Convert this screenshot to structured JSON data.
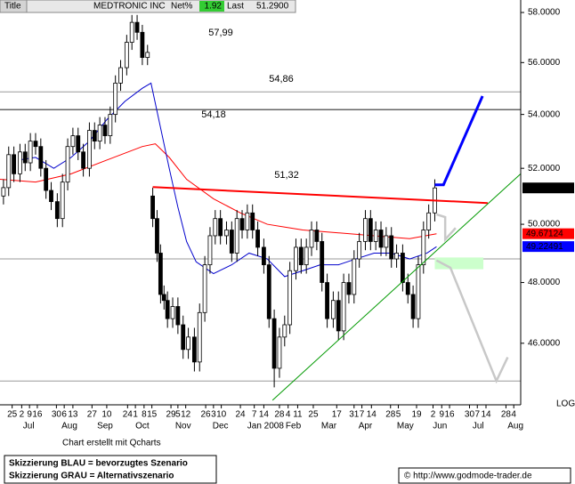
{
  "header": {
    "title": "Title",
    "symbol": "MEDTRONIC INC",
    "net_label": "Net%",
    "net": 1.92,
    "last_label": "Last",
    "last": {
      "value": 51.29,
      "label": "51.2900"
    }
  },
  "chart_data": {
    "type": "candlestick",
    "log": true,
    "ylim": [
      44.14,
      58.51
    ],
    "xlim": [
      0,
      60
    ],
    "yticks": [
      {
        "value": 58,
        "label": "58.0000"
      },
      {
        "value": 56,
        "label": "56.0000"
      },
      {
        "value": 54,
        "label": "54.0000"
      },
      {
        "value": 52,
        "label": "52.0000"
      },
      {
        "value": 50,
        "label": "50.0000"
      },
      {
        "value": 48,
        "label": "48.0000"
      },
      {
        "value": 46,
        "label": "46.0000"
      }
    ],
    "xticks": [
      {
        "value": 1.4,
        "label": "25"
      },
      {
        "value": 2.5,
        "label": "2"
      },
      {
        "value": 3.4,
        "label": "9"
      },
      {
        "value": 4.3,
        "label": "16"
      },
      {
        "value": 6.5,
        "label": "30"
      },
      {
        "value": 7.4,
        "label": "6"
      },
      {
        "value": 8.4,
        "label": "13"
      },
      {
        "value": 10.6,
        "label": "27"
      },
      {
        "value": 12.3,
        "label": "10"
      },
      {
        "value": 14.7,
        "label": "24"
      },
      {
        "value": 15.6,
        "label": "1"
      },
      {
        "value": 16.6,
        "label": "8"
      },
      {
        "value": 17.5,
        "label": "15"
      },
      {
        "value": 19.7,
        "label": "29"
      },
      {
        "value": 20.5,
        "label": "5"
      },
      {
        "value": 21.4,
        "label": "12"
      },
      {
        "value": 23.7,
        "label": "26"
      },
      {
        "value": 24.6,
        "label": "3"
      },
      {
        "value": 25.5,
        "label": "10"
      },
      {
        "value": 27.7,
        "label": "24"
      },
      {
        "value": 29.3,
        "label": "7"
      },
      {
        "value": 30.4,
        "label": "14"
      },
      {
        "value": 32.2,
        "label": "28"
      },
      {
        "value": 33.2,
        "label": "4"
      },
      {
        "value": 34.3,
        "label": "11"
      },
      {
        "value": 36.1,
        "label": "25"
      },
      {
        "value": 38.8,
        "label": "17"
      },
      {
        "value": 40.8,
        "label": "31"
      },
      {
        "value": 41.7,
        "label": "7"
      },
      {
        "value": 42.8,
        "label": "14"
      },
      {
        "value": 45.0,
        "label": "28"
      },
      {
        "value": 45.9,
        "label": "5"
      },
      {
        "value": 48.0,
        "label": "19"
      },
      {
        "value": 49.9,
        "label": "2"
      },
      {
        "value": 50.9,
        "label": "9"
      },
      {
        "value": 51.8,
        "label": "16"
      },
      {
        "value": 54.1,
        "label": "30"
      },
      {
        "value": 55.0,
        "label": "7"
      },
      {
        "value": 56.0,
        "label": "14"
      },
      {
        "value": 58.3,
        "label": "28"
      },
      {
        "value": 59.2,
        "label": "4"
      }
    ],
    "month_ticks": [
      {
        "value": 3.3,
        "label": "Jul"
      },
      {
        "value": 8.0,
        "label": "Aug"
      },
      {
        "value": 12.1,
        "label": "Sep"
      },
      {
        "value": 16.4,
        "label": "Oct"
      },
      {
        "value": 21.1,
        "label": "Nov"
      },
      {
        "value": 25.4,
        "label": "Dec"
      },
      {
        "value": 30.6,
        "label": "Jan 2008"
      },
      {
        "value": 33.8,
        "label": "Feb"
      },
      {
        "value": 37.9,
        "label": "Mar"
      },
      {
        "value": 42.1,
        "label": "Apr"
      },
      {
        "value": 46.7,
        "label": "May"
      },
      {
        "value": 50.7,
        "label": "Jun"
      },
      {
        "value": 55.1,
        "label": "Jul"
      },
      {
        "value": 59.4,
        "label": "Aug"
      }
    ],
    "scale_label": "LOG",
    "candles": {
      "x": [
        0.4,
        1.0,
        1.6,
        2.3,
        2.9,
        3.5,
        4.1,
        4.7,
        5.3,
        5.9,
        6.6,
        7.2,
        7.8,
        8.4,
        9.0,
        9.6,
        10.3,
        10.9,
        11.5,
        12.1,
        12.7,
        13.3,
        13.9,
        14.6,
        15.2,
        15.8,
        16.4,
        17.0,
        17.6,
        18.1,
        18.5,
        18.9,
        19.3,
        19.9,
        20.5,
        21.1,
        21.7,
        22.4,
        23.0,
        23.6,
        24.2,
        24.8,
        25.4,
        26.1,
        26.7,
        27.3,
        27.9,
        28.5,
        29.1,
        29.7,
        30.4,
        31.0,
        31.6,
        32.2,
        32.8,
        33.4,
        34.1,
        34.7,
        35.3,
        35.9,
        36.5,
        37.1,
        37.7,
        38.4,
        39.0,
        39.6,
        40.2,
        40.8,
        41.4,
        42.1,
        42.7,
        43.3,
        43.9,
        44.5,
        45.1,
        45.7,
        46.4,
        47.0,
        47.6,
        48.2,
        48.8,
        49.4,
        50.1
      ],
      "ohlc": [
        [
          51.0,
          51.6,
          50.7,
          51.3
        ],
        [
          51.3,
          52.8,
          51.0,
          52.5
        ],
        [
          52.5,
          52.8,
          51.5,
          51.8
        ],
        [
          51.8,
          52.9,
          51.5,
          52.6
        ],
        [
          52.6,
          52.9,
          51.9,
          52.2
        ],
        [
          52.2,
          53.3,
          51.9,
          53.0
        ],
        [
          53.0,
          53.3,
          52.5,
          52.8
        ],
        [
          52.8,
          53.1,
          51.7,
          52.0
        ],
        [
          52.0,
          52.3,
          50.9,
          51.2
        ],
        [
          51.2,
          51.5,
          50.5,
          50.8
        ],
        [
          50.8,
          51.1,
          49.9,
          50.2
        ],
        [
          50.2,
          51.8,
          49.9,
          51.5
        ],
        [
          51.5,
          53.1,
          51.2,
          52.8
        ],
        [
          52.8,
          53.5,
          52.5,
          53.2
        ],
        [
          53.2,
          53.5,
          52.3,
          52.6
        ],
        [
          52.6,
          52.9,
          51.7,
          52.0
        ],
        [
          52.0,
          53.7,
          51.7,
          53.4
        ],
        [
          53.4,
          53.7,
          52.7,
          53.0
        ],
        [
          53.0,
          53.9,
          52.7,
          53.6
        ],
        [
          53.6,
          53.9,
          52.9,
          53.2
        ],
        [
          53.2,
          54.3,
          52.9,
          54.0
        ],
        [
          54.0,
          55.5,
          53.7,
          55.2
        ],
        [
          55.2,
          56.1,
          54.9,
          55.8
        ],
        [
          55.8,
          57.1,
          55.5,
          56.8
        ],
        [
          56.8,
          57.9,
          56.5,
          57.6
        ],
        [
          57.6,
          57.9,
          56.9,
          57.2
        ],
        [
          57.2,
          57.5,
          55.9,
          56.2
        ],
        [
          56.2,
          56.7,
          55.9,
          56.4
        ],
        [
          51.0,
          51.3,
          49.9,
          50.2
        ],
        [
          50.2,
          50.5,
          48.7,
          49.0
        ],
        [
          49.0,
          49.3,
          47.3,
          47.6
        ],
        [
          47.6,
          47.9,
          47.1,
          47.4
        ],
        [
          47.4,
          47.7,
          46.5,
          46.8
        ],
        [
          46.8,
          47.5,
          46.5,
          47.2
        ],
        [
          47.2,
          47.5,
          46.3,
          46.6
        ],
        [
          46.6,
          46.9,
          45.5,
          45.8
        ],
        [
          45.8,
          46.5,
          45.5,
          46.2
        ],
        [
          46.2,
          46.5,
          45.1,
          45.4
        ],
        [
          45.4,
          47.3,
          45.1,
          47.0
        ],
        [
          47.0,
          48.9,
          46.7,
          48.6
        ],
        [
          48.6,
          49.9,
          48.3,
          49.6
        ],
        [
          49.6,
          50.5,
          49.3,
          50.2
        ],
        [
          50.2,
          50.5,
          49.3,
          49.6
        ],
        [
          49.6,
          50.1,
          49.3,
          49.8
        ],
        [
          49.8,
          50.1,
          48.7,
          49.0
        ],
        [
          49.0,
          50.5,
          48.7,
          50.2
        ],
        [
          50.2,
          50.5,
          49.5,
          49.8
        ],
        [
          49.8,
          50.7,
          49.5,
          50.4
        ],
        [
          50.4,
          50.7,
          49.5,
          49.8
        ],
        [
          49.8,
          50.1,
          48.9,
          49.2
        ],
        [
          49.2,
          49.5,
          48.3,
          48.6
        ],
        [
          48.6,
          48.9,
          46.5,
          46.8
        ],
        [
          46.8,
          47.1,
          44.6,
          45.2
        ],
        [
          45.2,
          46.5,
          44.9,
          46.2
        ],
        [
          46.2,
          46.9,
          45.9,
          46.6
        ],
        [
          46.6,
          48.7,
          46.3,
          48.4
        ],
        [
          48.4,
          49.5,
          48.1,
          49.2
        ],
        [
          49.2,
          49.5,
          48.3,
          48.6
        ],
        [
          48.6,
          49.5,
          48.3,
          49.2
        ],
        [
          49.2,
          50.1,
          48.9,
          49.8
        ],
        [
          49.8,
          50.1,
          49.1,
          49.4
        ],
        [
          49.4,
          49.7,
          47.7,
          48.0
        ],
        [
          48.0,
          48.3,
          46.5,
          46.8
        ],
        [
          46.8,
          47.7,
          46.5,
          47.4
        ],
        [
          47.4,
          47.7,
          46.1,
          46.4
        ],
        [
          46.4,
          48.3,
          46.1,
          48.0
        ],
        [
          48.0,
          48.3,
          47.3,
          47.6
        ],
        [
          47.6,
          49.1,
          47.3,
          48.8
        ],
        [
          48.8,
          49.7,
          48.5,
          49.4
        ],
        [
          49.4,
          50.5,
          49.1,
          50.2
        ],
        [
          50.2,
          50.5,
          49.1,
          49.4
        ],
        [
          49.4,
          50.1,
          49.1,
          49.8
        ],
        [
          49.8,
          50.1,
          48.9,
          49.2
        ],
        [
          49.2,
          49.9,
          48.9,
          49.6
        ],
        [
          49.6,
          49.9,
          48.5,
          48.8
        ],
        [
          48.8,
          49.3,
          48.5,
          49.0
        ],
        [
          49.0,
          49.3,
          47.7,
          48.0
        ],
        [
          48.0,
          48.3,
          47.3,
          47.6
        ],
        [
          47.6,
          47.9,
          46.5,
          46.8
        ],
        [
          46.8,
          48.9,
          46.5,
          48.6
        ],
        [
          48.6,
          50.1,
          48.3,
          49.8
        ],
        [
          49.8,
          50.7,
          49.5,
          50.4
        ],
        [
          50.4,
          51.6,
          50.1,
          51.29
        ]
      ],
      "last": {
        "value": 51.29,
        "label": "51.2900"
      },
      "color": "#000000"
    },
    "series": [
      {
        "color": "#ff0000",
        "last": 49.67124,
        "x": [
          0,
          4.1,
          8.2,
          12.3,
          16.4,
          17.9,
          19.5,
          21.5,
          24.6,
          27.7,
          30.8,
          34.9,
          39.0,
          43.1,
          47.2,
          50.3
        ],
        "values": [
          51.6,
          51.5,
          51.8,
          52.3,
          52.8,
          52.9,
          52.4,
          51.6,
          50.9,
          50.4,
          50.0,
          49.8,
          49.7,
          49.6,
          49.5,
          49.67
        ]
      },
      {
        "color": "#0000cc",
        "last": 49.22491,
        "x": [
          2.1,
          4.1,
          6.2,
          8.2,
          10.3,
          12.3,
          14.4,
          16.4,
          17.4,
          18.5,
          19.5,
          20.5,
          21.5,
          22.6,
          24.6,
          26.7,
          28.7,
          30.8,
          32.8,
          34.9,
          36.9,
          39.0,
          41.0,
          43.1,
          45.1,
          47.2,
          49.2,
          50.3
        ],
        "values": [
          52.3,
          52.4,
          52.0,
          52.4,
          53.0,
          53.8,
          54.5,
          55.0,
          55.2,
          53.5,
          52.0,
          50.6,
          49.4,
          48.7,
          48.3,
          48.6,
          49.0,
          48.8,
          48.2,
          48.4,
          48.6,
          48.6,
          48.8,
          49.0,
          49.0,
          48.8,
          49.0,
          49.22
        ]
      }
    ],
    "levels": [
      {
        "value": 57.99,
        "label": "57,99"
      },
      {
        "value": 54.86,
        "label": "54,86"
      },
      {
        "value": 54.18,
        "label": "54,18"
      },
      {
        "value": 51.32,
        "label": "51,32"
      }
    ],
    "hlines": [
      54.86,
      54.18,
      48.8,
      44.8
    ],
    "drawings": [
      {
        "color": "#ff0000",
        "x": [
          17.6,
          56.2
        ],
        "y": [
          51.32,
          50.75
        ]
      },
      {
        "color": "#009900",
        "x": [
          31.4,
          60
        ],
        "y": [
          44.2,
          51.8
        ]
      },
      {
        "color": "#0000ff",
        "x": [
          50.1,
          51.1,
          55.6
        ],
        "y": [
          51.4,
          51.4,
          54.7
        ]
      },
      {
        "color": "#c8c8c8",
        "x": [
          50.3,
          51.3,
          51.3,
          52.5
        ],
        "y": [
          50.35,
          50.25,
          49.47,
          49.87
        ]
      },
      {
        "color": "#c8c8c8",
        "x": [
          50.3,
          51.9,
          57.2,
          58.5
        ],
        "y": [
          48.75,
          48.5,
          44.8,
          45.55
        ]
      }
    ],
    "zone": {
      "color": "#ccffcc",
      "x": [
        50.1,
        55.7
      ],
      "y": [
        48.45,
        48.85
      ]
    }
  },
  "footer": {
    "credit": "Chart erstellt mit Qcharts",
    "legend_blue": "Skizzierung BLAU = bevorzugtes Szenario",
    "legend_grey": "Skizzierung GRAU = Alternativszenario",
    "site": "© http://www.godmode-trader.de"
  }
}
